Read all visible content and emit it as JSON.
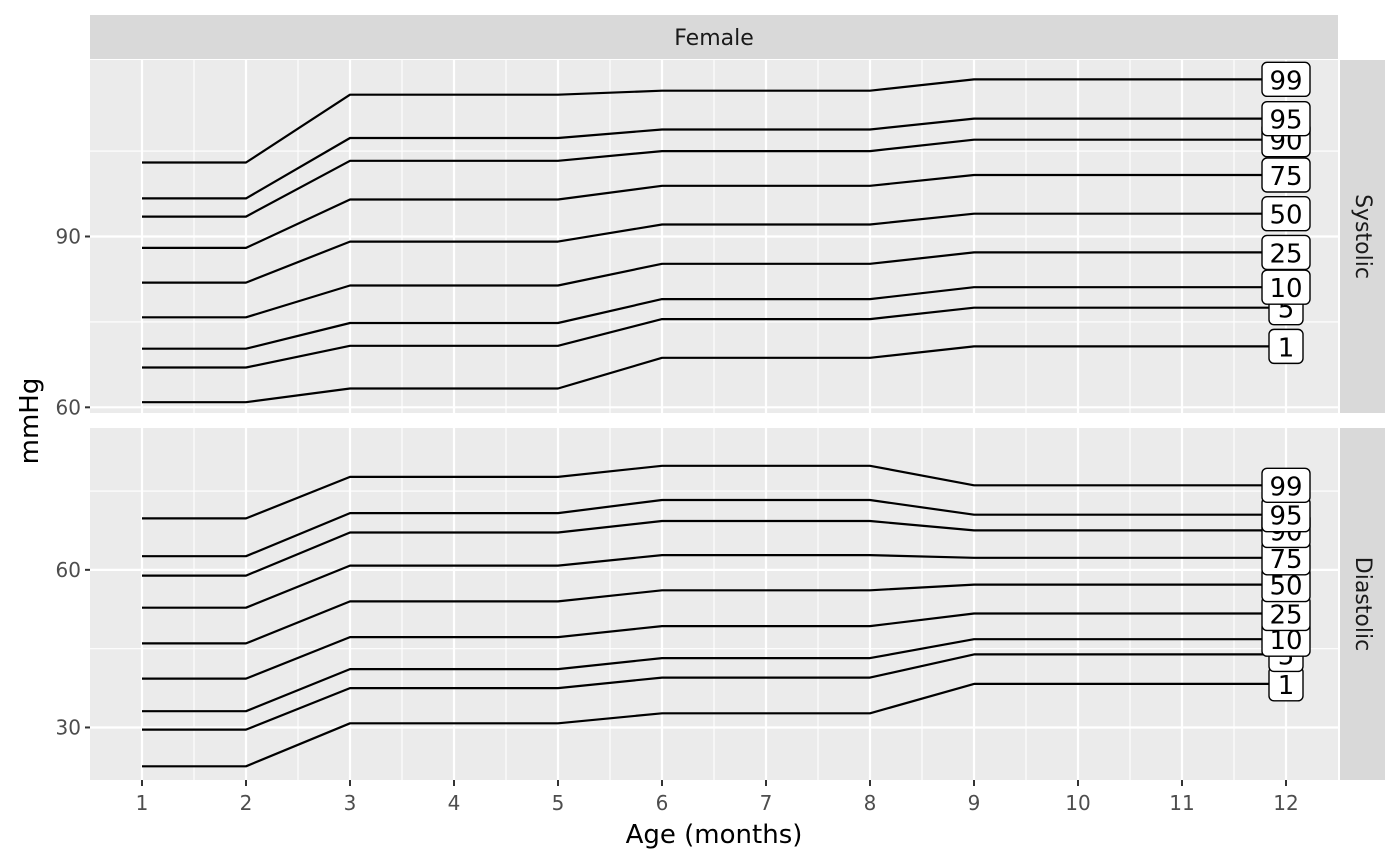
{
  "chart_data": {
    "type": "line",
    "top_strip": "Female",
    "xlabel": "Age (months)",
    "ylabel": "mmHg",
    "x_ticks": [
      1,
      2,
      3,
      4,
      5,
      6,
      7,
      8,
      9,
      10,
      11,
      12
    ],
    "xlim": [
      0.5,
      12.5
    ],
    "x": [
      1,
      2,
      3,
      5,
      6,
      8,
      9,
      12
    ],
    "panels": [
      {
        "name": "Systolic",
        "ylim": [
          59,
          121
        ],
        "y_ticks": [
          60,
          90
        ],
        "series": [
          {
            "name": "1",
            "values": [
              60.9,
              60.9,
              63.3,
              63.3,
              68.7,
              68.7,
              70.7,
              70.7
            ]
          },
          {
            "name": "5",
            "values": [
              67.0,
              67.0,
              70.8,
              70.8,
              75.5,
              75.5,
              77.5,
              77.5
            ]
          },
          {
            "name": "10",
            "values": [
              70.3,
              70.3,
              74.8,
              74.8,
              79.0,
              79.0,
              81.1,
              81.1
            ]
          },
          {
            "name": "25",
            "values": [
              75.8,
              75.8,
              81.4,
              81.4,
              85.2,
              85.2,
              87.2,
              87.2
            ]
          },
          {
            "name": "50",
            "values": [
              81.9,
              81.9,
              89.1,
              89.1,
              92.1,
              92.1,
              94.0,
              94.0
            ]
          },
          {
            "name": "75",
            "values": [
              88.0,
              88.0,
              96.5,
              96.5,
              98.9,
              98.9,
              100.8,
              100.8
            ]
          },
          {
            "name": "90",
            "values": [
              93.5,
              93.5,
              103.3,
              103.3,
              105.0,
              105.0,
              107.0,
              107.0
            ]
          },
          {
            "name": "95",
            "values": [
              96.7,
              96.7,
              107.3,
              107.3,
              108.8,
              108.8,
              110.7,
              110.7
            ]
          },
          {
            "name": "99",
            "values": [
              103.0,
              103.0,
              114.9,
              114.9,
              115.6,
              115.6,
              117.6,
              117.6
            ]
          }
        ]
      },
      {
        "name": "Diastolic",
        "ylim": [
          20,
          87
        ],
        "y_ticks": [
          30,
          60
        ],
        "series": [
          {
            "name": "1",
            "values": [
              22.6,
              22.6,
              30.8,
              30.8,
              32.7,
              32.7,
              38.3,
              38.3
            ]
          },
          {
            "name": "5",
            "values": [
              29.6,
              29.6,
              37.5,
              37.5,
              39.5,
              39.5,
              43.9,
              43.9
            ]
          },
          {
            "name": "10",
            "values": [
              33.1,
              33.1,
              41.1,
              41.1,
              43.2,
              43.2,
              46.8,
              46.8
            ]
          },
          {
            "name": "25",
            "values": [
              39.3,
              39.3,
              47.2,
              47.2,
              49.3,
              49.3,
              51.7,
              51.7
            ]
          },
          {
            "name": "50",
            "values": [
              46.0,
              46.0,
              54.0,
              54.0,
              56.1,
              56.1,
              57.2,
              57.2
            ]
          },
          {
            "name": "75",
            "values": [
              52.8,
              52.8,
              60.8,
              60.8,
              62.8,
              62.8,
              62.3,
              62.3
            ]
          },
          {
            "name": "90",
            "values": [
              58.9,
              58.9,
              67.1,
              67.1,
              69.3,
              69.3,
              67.5,
              67.5
            ]
          },
          {
            "name": "95",
            "values": [
              62.6,
              62.6,
              70.8,
              70.8,
              73.3,
              73.3,
              70.5,
              70.5
            ]
          },
          {
            "name": "99",
            "values": [
              69.8,
              69.8,
              77.7,
              77.7,
              79.8,
              79.8,
              76.1,
              76.1
            ]
          }
        ]
      }
    ],
    "colors": {
      "panel_background": "#ebebeb",
      "strip_background": "#d9d9d9",
      "grid": "#ffffff",
      "line": "#000000",
      "label_fill": "#ffffff"
    }
  }
}
